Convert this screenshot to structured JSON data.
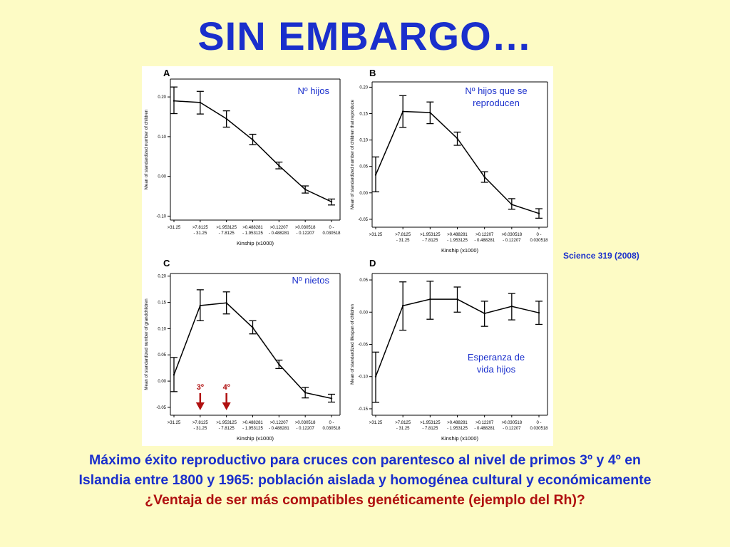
{
  "title": "SIN EMBARGO…",
  "citation": "Science 319 (2008)",
  "caption": {
    "line1": "Máximo éxito reproductivo para cruces con parentesco al nivel de primos 3º y 4º en",
    "line2": "Islandia entre 1800 y 1965: población aislada y homogénea cultural y económicamente",
    "line3": "¿Ventaja de ser más compatibles genéticamente (ejemplo del Rh)?"
  },
  "colors": {
    "title": "#1a2fcc",
    "annotation": "#1a2fcc",
    "arrow": "#b01010",
    "background": "#fdfbc5"
  },
  "chart_data": [
    {
      "type": "line",
      "panel_letter": "A",
      "annotation": [
        "Nº hijos"
      ],
      "ylabel": "Mean of standardized number of children",
      "xlabel": "Kinship (x1000)",
      "categories": [
        [
          ">31.25"
        ],
        [
          ">7.8125",
          "- 31.25"
        ],
        [
          ">1.953125",
          "- 7.8125"
        ],
        [
          ">0.488281",
          "- 1.953125"
        ],
        [
          ">0.12207",
          "- 0.488281"
        ],
        [
          ">0.030518",
          "- 0.12207"
        ],
        [
          "0 -",
          "0.030518"
        ]
      ],
      "ylim": [
        -0.11,
        0.245
      ],
      "yticks": [
        -0.1,
        0.0,
        0.1,
        0.2
      ],
      "ytick_labels": [
        "-0.10",
        "0.00",
        "0.10",
        "0.20"
      ],
      "series": [
        {
          "values": [
            0.19,
            0.186,
            0.145,
            0.092,
            0.027,
            -0.033,
            -0.064
          ],
          "err_low": [
            0.158,
            0.157,
            0.124,
            0.08,
            0.019,
            -0.042,
            -0.072
          ],
          "err_high": [
            0.225,
            0.214,
            0.165,
            0.106,
            0.036,
            -0.024,
            -0.057
          ]
        }
      ]
    },
    {
      "type": "line",
      "panel_letter": "B",
      "annotation": [
        "Nº hijos que se",
        "reproducen"
      ],
      "ylabel": "Mean of standardized number of children that reproduce",
      "xlabel": "Kinship (x1000)",
      "categories": [
        [
          ">31.25"
        ],
        [
          ">7.8125",
          "- 31.25"
        ],
        [
          ">1.953125",
          "- 7.8125"
        ],
        [
          ">0.488281",
          "- 1.953125"
        ],
        [
          ">0.12207",
          "- 0.488281"
        ],
        [
          ">0.030518",
          "- 0.12207"
        ],
        [
          "0 -",
          "0.030518"
        ]
      ],
      "ylim": [
        -0.065,
        0.21
      ],
      "yticks": [
        -0.05,
        0.0,
        0.05,
        0.1,
        0.15,
        0.2
      ],
      "ytick_labels": [
        "-0.05",
        "0.00",
        "0.05",
        "0.10",
        "0.15",
        "0.20"
      ],
      "series": [
        {
          "values": [
            0.034,
            0.154,
            0.152,
            0.103,
            0.03,
            -0.022,
            -0.039
          ],
          "err_low": [
            0.002,
            0.124,
            0.131,
            0.09,
            0.02,
            -0.031,
            -0.048
          ],
          "err_high": [
            0.068,
            0.184,
            0.172,
            0.115,
            0.04,
            -0.011,
            -0.03
          ]
        }
      ]
    },
    {
      "type": "line",
      "panel_letter": "C",
      "annotation": [
        "Nº nietos"
      ],
      "ylabel": "Mean of standardized number of grandchildren",
      "xlabel": "Kinship (x1000)",
      "categories": [
        [
          ">31.25"
        ],
        [
          ">7.8125",
          "- 31.25"
        ],
        [
          ">1.953125",
          "- 7.8125"
        ],
        [
          ">0.488281",
          "- 1.953125"
        ],
        [
          ">0.12207",
          "- 0.488281"
        ],
        [
          ">0.030518",
          "- 0.12207"
        ],
        [
          "0 -",
          "0.030518"
        ]
      ],
      "ylim": [
        -0.065,
        0.205
      ],
      "yticks": [
        -0.05,
        0.0,
        0.05,
        0.1,
        0.15,
        0.2
      ],
      "ytick_labels": [
        "-0.05",
        "0.00",
        "0.05",
        "0.10",
        "0.15",
        "0.20"
      ],
      "series": [
        {
          "values": [
            0.012,
            0.144,
            0.149,
            0.102,
            0.032,
            -0.022,
            -0.033
          ],
          "err_low": [
            -0.02,
            0.115,
            0.128,
            0.09,
            0.024,
            -0.032,
            -0.04
          ],
          "err_high": [
            0.045,
            0.174,
            0.17,
            0.115,
            0.04,
            -0.012,
            -0.025
          ]
        }
      ],
      "markers": [
        {
          "label": "3º",
          "category_index": 1
        },
        {
          "label": "4º",
          "category_index": 2
        }
      ]
    },
    {
      "type": "line",
      "panel_letter": "D",
      "annotation": [
        "Esperanza de",
        "vida hijos"
      ],
      "ylabel": "Mean of standardized lifespan of children",
      "xlabel": "Kinship (x1000)",
      "categories": [
        [
          ">31.25"
        ],
        [
          ">7.8125",
          "- 31.25"
        ],
        [
          ">1.953125",
          "- 7.8125"
        ],
        [
          ">0.488281",
          "- 1.953125"
        ],
        [
          ">0.12207",
          "- 0.488281"
        ],
        [
          ">0.030518",
          "- 0.12207"
        ],
        [
          "0 -",
          "0.030518"
        ]
      ],
      "ylim": [
        -0.16,
        0.06
      ],
      "yticks": [
        -0.15,
        -0.1,
        -0.05,
        0.0,
        0.05
      ],
      "ytick_labels": [
        "-0.15",
        "-0.10",
        "-0.05",
        "0.00",
        "0.05"
      ],
      "series": [
        {
          "values": [
            -0.1,
            0.01,
            0.02,
            0.02,
            -0.002,
            0.009,
            -0.001
          ],
          "err_low": [
            -0.14,
            -0.028,
            -0.011,
            0.0,
            -0.022,
            -0.012,
            -0.019
          ],
          "err_high": [
            -0.062,
            0.047,
            0.048,
            0.039,
            0.017,
            0.029,
            0.017
          ]
        }
      ]
    }
  ]
}
